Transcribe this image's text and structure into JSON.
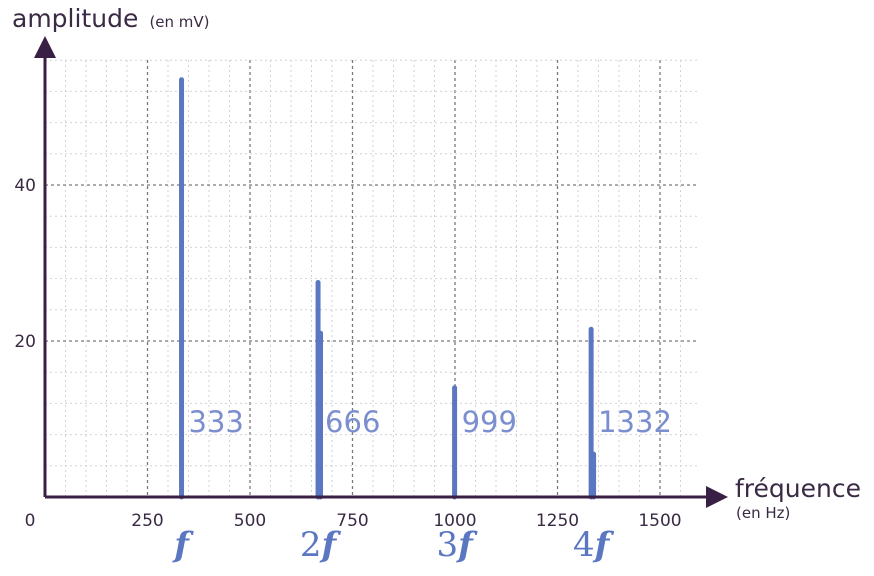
{
  "chart_data": {
    "type": "bar",
    "ylabel": "amplitude",
    "ylabel_unit": "(en mV)",
    "xlabel": "fréquence",
    "xlabel_unit": "(en Hz)",
    "xlim": [
      0,
      1600
    ],
    "ylim": [
      0,
      56
    ],
    "x_ticks": [
      "0",
      "250",
      "500",
      "750",
      "1000",
      "1250",
      "1500"
    ],
    "x_tick_values": [
      0,
      250,
      500,
      750,
      1000,
      1250,
      1500
    ],
    "y_ticks": [
      "20",
      "40"
    ],
    "y_tick_values": [
      20,
      40
    ],
    "grid": true,
    "bars": [
      {
        "x": 333,
        "y": 53.5
      },
      {
        "x": 666,
        "y": 27.5
      },
      {
        "x": 672,
        "y": 21
      },
      {
        "x": 999,
        "y": 14
      },
      {
        "x": 1332,
        "y": 21.5
      },
      {
        "x": 1338,
        "y": 5.5
      }
    ],
    "peak_labels": [
      {
        "x": 333,
        "text": "333"
      },
      {
        "x": 666,
        "text": "666"
      },
      {
        "x": 999,
        "text": "999"
      },
      {
        "x": 1332,
        "text": "1332"
      }
    ],
    "harmonic_labels": [
      {
        "x": 333,
        "coef": "",
        "symbol": "f"
      },
      {
        "x": 666,
        "coef": "2",
        "symbol": "f"
      },
      {
        "x": 999,
        "coef": "3",
        "symbol": "f"
      },
      {
        "x": 1332,
        "coef": "4",
        "symbol": "f"
      }
    ],
    "colors": {
      "bars": "#5b77c2",
      "axes": "#3a1f44",
      "grid": "#9a9a9a",
      "labels": "#7b8fd0"
    }
  }
}
